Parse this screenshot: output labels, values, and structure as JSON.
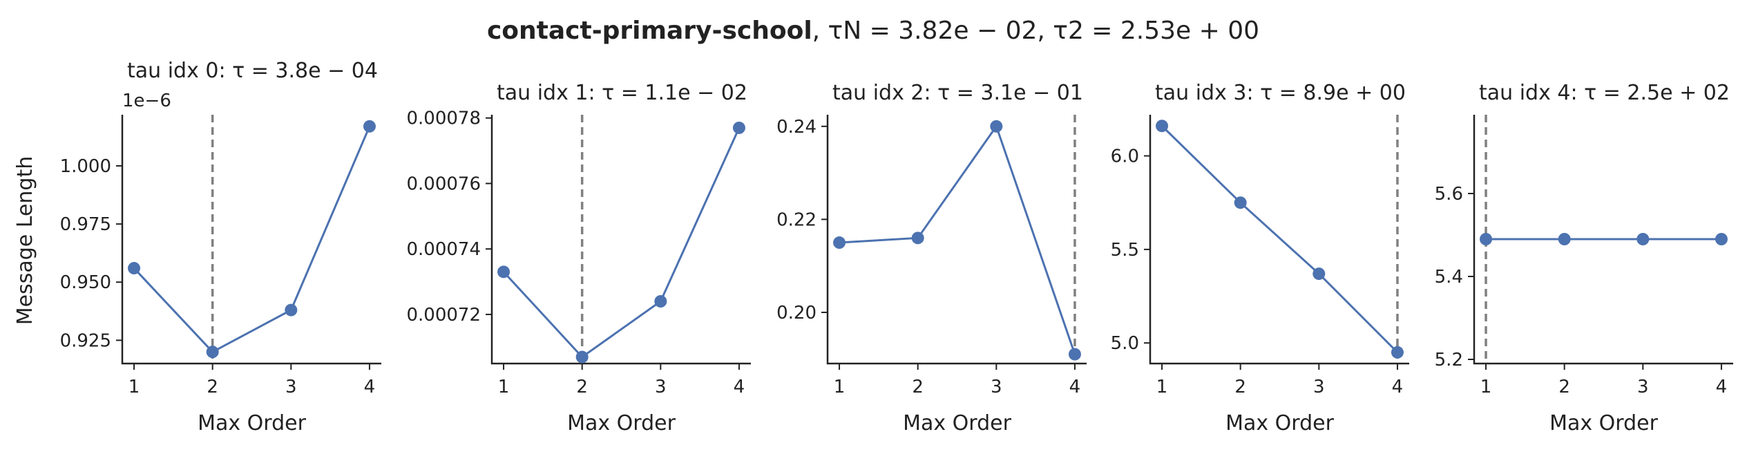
{
  "figure": {
    "title_bold": "contact-primary-school",
    "title_rest": ", τN = 3.82e − 02, τ2 = 2.53e + 00",
    "ylabel": "Message Length",
    "series_color": "#4c72b0",
    "vline_color": "#808080"
  },
  "chart_data": [
    {
      "type": "line",
      "title": "tau idx 0: τ = 3.8e − 04",
      "xlabel": "Max Order",
      "ylabel": "Message Length",
      "x": [
        1,
        2,
        3,
        4
      ],
      "y": [
        0.956,
        0.92,
        0.938,
        1.017
      ],
      "ylim": [
        0.915,
        1.022
      ],
      "yticks": [
        0.925,
        0.95,
        0.975,
        1.0
      ],
      "ytick_labels": [
        "0.925",
        "0.950",
        "0.975",
        "1.000"
      ],
      "offset_label": "1e−6",
      "vline_x": 2
    },
    {
      "type": "line",
      "title": "tau idx 1: τ = 1.1e − 02",
      "xlabel": "Max Order",
      "x": [
        1,
        2,
        3,
        4
      ],
      "y": [
        0.000733,
        0.000707,
        0.000724,
        0.000777
      ],
      "ylim": [
        0.000705,
        0.000781
      ],
      "yticks": [
        0.00072,
        0.00074,
        0.00076,
        0.00078
      ],
      "ytick_labels": [
        "0.00072",
        "0.00074",
        "0.00076",
        "0.00078"
      ],
      "vline_x": 2
    },
    {
      "type": "line",
      "title": "tau idx 2: τ = 3.1e − 01",
      "xlabel": "Max Order",
      "x": [
        1,
        2,
        3,
        4
      ],
      "y": [
        0.215,
        0.216,
        0.24,
        0.191
      ],
      "ylim": [
        0.189,
        0.2425
      ],
      "yticks": [
        0.2,
        0.22,
        0.24
      ],
      "ytick_labels": [
        "0.20",
        "0.22",
        "0.24"
      ],
      "vline_x": 4
    },
    {
      "type": "line",
      "title": "tau idx 3: τ = 8.9e + 00",
      "xlabel": "Max Order",
      "x": [
        1,
        2,
        3,
        4
      ],
      "y": [
        6.16,
        5.75,
        5.37,
        4.95
      ],
      "ylim": [
        4.89,
        6.22
      ],
      "yticks": [
        5.0,
        5.5,
        6.0
      ],
      "ytick_labels": [
        "5.0",
        "5.5",
        "6.0"
      ],
      "vline_x": 4
    },
    {
      "type": "line",
      "title": "tau idx 4: τ = 2.5e + 02",
      "xlabel": "Max Order",
      "x": [
        1,
        2,
        3,
        4
      ],
      "y": [
        5.49,
        5.49,
        5.49,
        5.49
      ],
      "ylim": [
        5.19,
        5.79
      ],
      "yticks": [
        5.2,
        5.4,
        5.6
      ],
      "ytick_labels": [
        "5.2",
        "5.4",
        "5.6"
      ],
      "vline_x": 1
    }
  ]
}
